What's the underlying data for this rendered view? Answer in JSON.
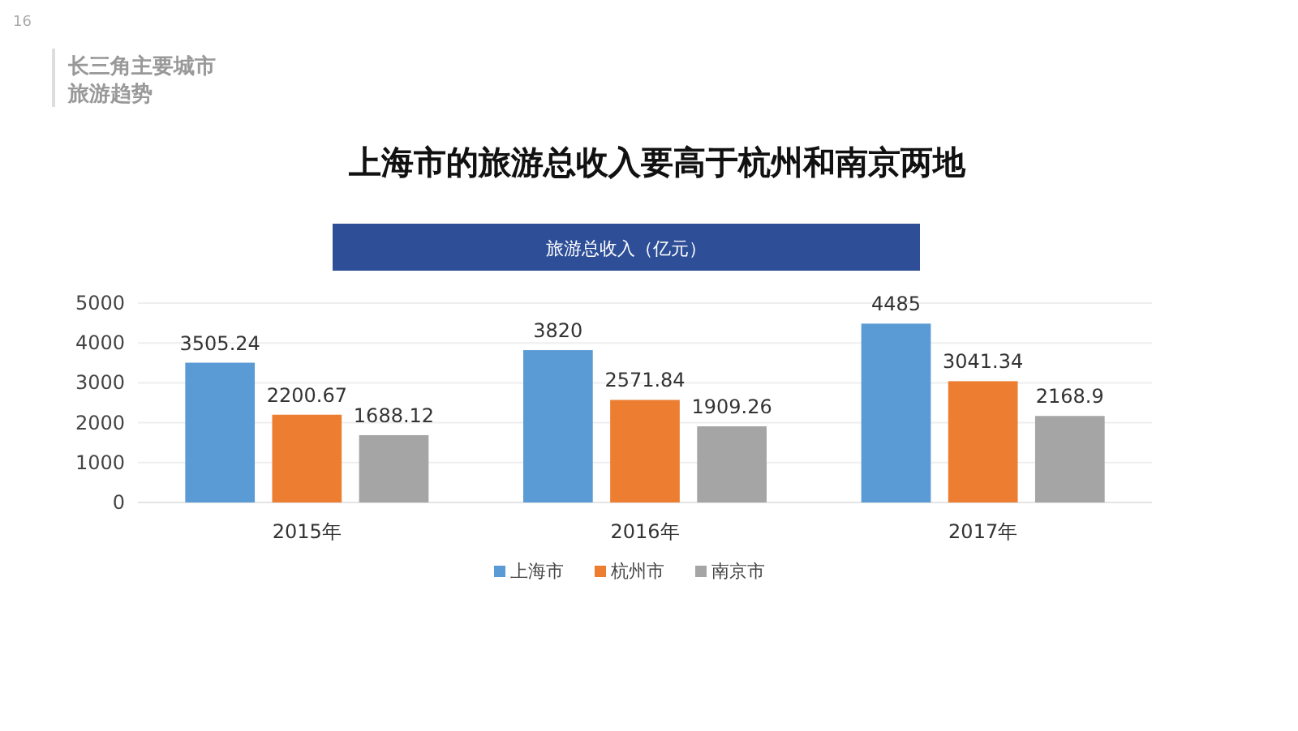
{
  "chart_data": {
    "type": "bar",
    "title": "上海市的旅游总收入要高于杭州和南京两地",
    "subtitle": "旅游总收入（亿元）",
    "annotations": [
      "16",
      "长三角主要城市",
      "旅游趋势"
    ],
    "categories": [
      "2015年",
      "2016年",
      "2017年"
    ],
    "series": [
      {
        "name": "上海市",
        "color": "#5b9bd5",
        "values": [
          3505.24,
          3820,
          4485
        ]
      },
      {
        "name": "杭州市",
        "color": "#ed7d31",
        "values": [
          2200.67,
          2571.84,
          3041.34
        ]
      },
      {
        "name": "南京市",
        "color": "#a5a5a5",
        "values": [
          1688.12,
          1909.26,
          2168.9
        ]
      }
    ],
    "ylim": [
      0,
      5000
    ],
    "yticks": [
      0,
      1000,
      2000,
      3000,
      4000,
      5000
    ],
    "grid": "y",
    "legend": "bottom",
    "data_labels": true
  }
}
